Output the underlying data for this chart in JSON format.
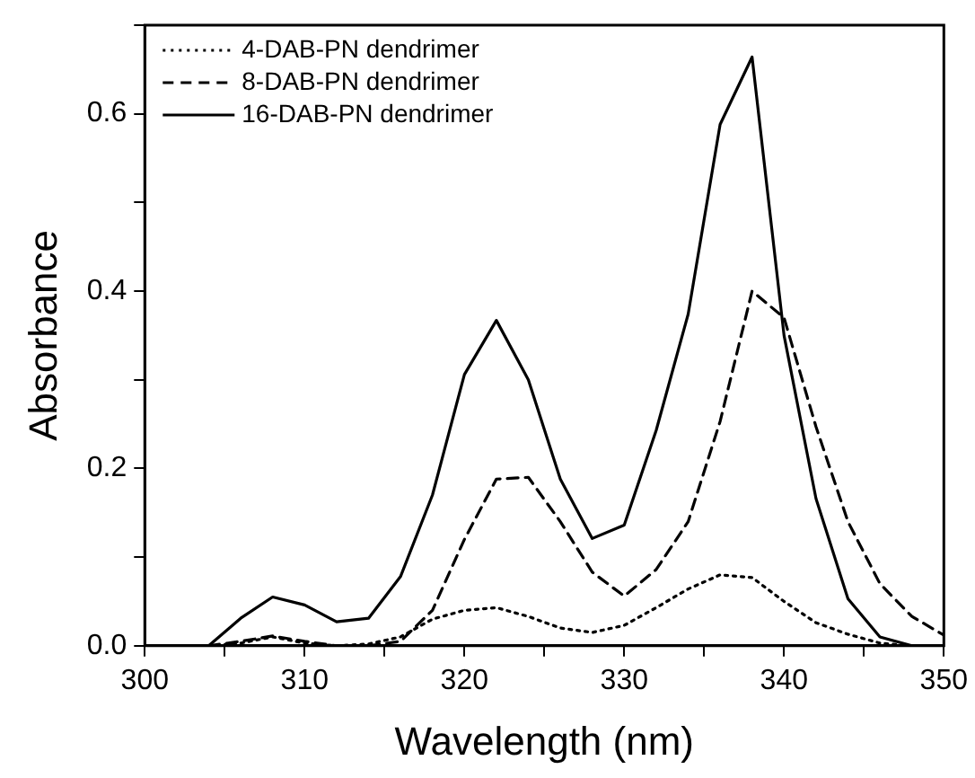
{
  "chart_data": {
    "type": "line",
    "xlabel": "Wavelength (nm)",
    "ylabel": "Absorbance",
    "x": [
      304,
      306,
      308,
      310,
      312,
      314,
      316,
      318,
      320,
      322,
      324,
      326,
      328,
      330,
      332,
      334,
      336,
      338,
      340,
      342,
      344,
      346,
      348,
      350
    ],
    "series": [
      {
        "name": "4-DAB-PN dendrimer",
        "color": "#000000",
        "line_style": "dotted",
        "values": [
          0,
          0.003,
          0.01,
          0.003,
          0,
          0.002,
          0.01,
          0.03,
          0.04,
          0.043,
          0.033,
          0.02,
          0.015,
          0.023,
          0.043,
          0.064,
          0.08,
          0.077,
          0.05,
          0.026,
          0.013,
          0.003,
          0,
          null
        ]
      },
      {
        "name": "8-DAB-PN dendrimer",
        "color": "#000000",
        "line_style": "dashed",
        "values": [
          0,
          0.005,
          0.011,
          0.005,
          0,
          0,
          0.005,
          0.04,
          0.12,
          0.188,
          0.19,
          0.14,
          0.083,
          0.056,
          0.086,
          0.14,
          0.253,
          0.4,
          0.37,
          0.247,
          0.14,
          0.07,
          0.033,
          0.012
        ]
      },
      {
        "name": "16-DAB-PN dendrimer",
        "color": "#000000",
        "line_style": "solid",
        "values": [
          0,
          0.031,
          0.055,
          0.046,
          0.027,
          0.031,
          0.078,
          0.17,
          0.306,
          0.367,
          0.3,
          0.188,
          0.121,
          0.136,
          0.243,
          0.374,
          0.588,
          0.664,
          0.35,
          0.166,
          0.053,
          0.01,
          0,
          null
        ]
      }
    ],
    "xlim": [
      300,
      350
    ],
    "xticks": [
      300,
      {
        "value": 305,
        "label": null
      },
      310,
      {
        "value": 315,
        "label": null
      },
      320,
      {
        "value": 325,
        "label": null
      },
      330,
      {
        "value": 335,
        "label": null
      },
      340,
      {
        "value": 345,
        "label": null
      },
      350
    ],
    "ylim": [
      0,
      0.7
    ],
    "yticks": [
      {
        "value": 0,
        "label": "0.0"
      },
      {
        "value": 0.1,
        "label": null
      },
      0.2,
      {
        "value": 0.3,
        "label": null
      },
      0.4,
      {
        "value": 0.5,
        "label": null
      },
      0.6,
      {
        "value": 0.7,
        "label": null
      }
    ],
    "grid": false,
    "legend": "top left",
    "marker": "none"
  }
}
